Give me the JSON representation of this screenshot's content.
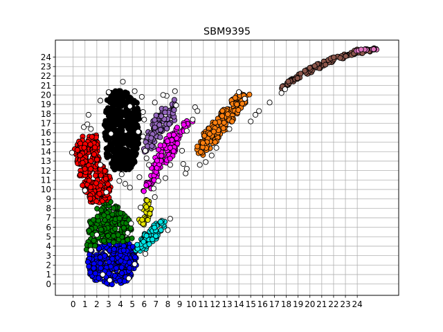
{
  "chart_data": {
    "type": "scatter",
    "title": "SBM9395",
    "xlabel": "",
    "ylabel": "",
    "xlim": [
      -1.5,
      27.5
    ],
    "ylim": [
      -1.2,
      25.8
    ],
    "xticks": [
      0,
      1,
      2,
      3,
      4,
      5,
      6,
      7,
      8,
      9,
      10,
      11,
      12,
      13,
      14,
      15,
      16,
      17,
      18,
      19,
      20,
      21,
      22,
      23,
      24
    ],
    "yticks": [
      0,
      1,
      2,
      3,
      4,
      5,
      6,
      7,
      8,
      9,
      10,
      11,
      12,
      13,
      14,
      15,
      16,
      17,
      18,
      19,
      20,
      21,
      22,
      23,
      24
    ],
    "grid": true,
    "marker_edge_color": "#000000",
    "clusters": [
      {
        "color": "#0000ff",
        "outline": [
          [
            1.1,
            1.6
          ],
          [
            1.8,
            0.3
          ],
          [
            3.2,
            -0.1
          ],
          [
            4.5,
            0.2
          ],
          [
            5.3,
            1.4
          ],
          [
            5.4,
            3.4
          ],
          [
            4.8,
            4.3
          ],
          [
            2.6,
            4.3
          ],
          [
            1.4,
            3.5
          ]
        ],
        "count": 340
      },
      {
        "color": "#008000",
        "outline": [
          [
            1.1,
            3.4
          ],
          [
            1.4,
            7.0
          ],
          [
            2.1,
            8.3
          ],
          [
            3.0,
            9.1
          ],
          [
            4.2,
            7.8
          ],
          [
            5.0,
            6.2
          ],
          [
            5.0,
            4.6
          ],
          [
            3.6,
            4.4
          ],
          [
            1.9,
            4.0
          ]
        ],
        "count": 180
      },
      {
        "color": "#ff0000",
        "outline": [
          [
            0.1,
            14.2
          ],
          [
            0.7,
            15.7
          ],
          [
            2.0,
            15.9
          ],
          [
            2.2,
            13.0
          ],
          [
            3.1,
            11.5
          ],
          [
            3.3,
            9.2
          ],
          [
            2.3,
            8.4
          ],
          [
            1.2,
            8.8
          ],
          [
            0.6,
            11.2
          ]
        ],
        "count": 260
      },
      {
        "color": "#000000",
        "outline": [
          [
            2.6,
            17.1
          ],
          [
            2.9,
            20.2
          ],
          [
            3.6,
            20.5
          ],
          [
            4.6,
            20.3
          ],
          [
            5.4,
            19.5
          ],
          [
            5.7,
            16.3
          ],
          [
            5.3,
            13.1
          ],
          [
            4.8,
            12.1
          ],
          [
            3.4,
            12.1
          ],
          [
            2.8,
            13.6
          ]
        ],
        "count": 460
      },
      {
        "color": "#00e5e5",
        "outline": [
          [
            5.1,
            3.3
          ],
          [
            5.6,
            5.0
          ],
          [
            6.4,
            5.8
          ],
          [
            7.3,
            6.8
          ],
          [
            8.0,
            6.5
          ],
          [
            7.3,
            5.2
          ],
          [
            6.2,
            3.6
          ]
        ],
        "count": 70
      },
      {
        "color": "#e5e500",
        "outline": [
          [
            5.4,
            6.3
          ],
          [
            5.6,
            7.6
          ],
          [
            6.1,
            8.9
          ],
          [
            6.6,
            9.3
          ],
          [
            6.8,
            8.1
          ],
          [
            6.4,
            6.8
          ],
          [
            5.9,
            6.0
          ]
        ],
        "count": 28
      },
      {
        "color": "#ff00ff",
        "outline": [
          [
            5.9,
            9.7
          ],
          [
            6.5,
            12.2
          ],
          [
            7.3,
            14.6
          ],
          [
            8.4,
            16.2
          ],
          [
            9.6,
            17.4
          ],
          [
            10.2,
            17.2
          ],
          [
            9.0,
            15.7
          ],
          [
            8.6,
            13.8
          ],
          [
            7.3,
            12.0
          ],
          [
            6.7,
            10.1
          ]
        ],
        "count": 120
      },
      {
        "color": "#9467bd",
        "outline": [
          [
            5.9,
            13.9
          ],
          [
            6.2,
            16.4
          ],
          [
            7.2,
            18.2
          ],
          [
            8.2,
            19.5
          ],
          [
            8.8,
            19.6
          ],
          [
            8.6,
            17.3
          ],
          [
            7.4,
            15.6
          ],
          [
            6.5,
            13.7
          ]
        ],
        "count": 90
      },
      {
        "color": "#ff7f0e",
        "outline": [
          [
            10.1,
            13.7
          ],
          [
            10.6,
            15.3
          ],
          [
            11.8,
            17.1
          ],
          [
            12.9,
            18.9
          ],
          [
            14.1,
            20.3
          ],
          [
            15.1,
            20.3
          ],
          [
            14.2,
            18.4
          ],
          [
            13.4,
            17.0
          ],
          [
            12.2,
            15.2
          ],
          [
            11.0,
            13.6
          ]
        ],
        "count": 170
      },
      {
        "color": "#8c564b",
        "outline": [
          [
            17.3,
            20.5
          ],
          [
            18.5,
            21.8
          ],
          [
            20.3,
            23.1
          ],
          [
            22.2,
            24.1
          ],
          [
            23.8,
            24.8
          ],
          [
            25.5,
            25.0
          ],
          [
            25.3,
            24.6
          ],
          [
            23.6,
            24.2
          ],
          [
            21.6,
            23.3
          ],
          [
            19.6,
            22.0
          ],
          [
            18.0,
            20.9
          ]
        ],
        "count": 110
      },
      {
        "color": "#e377c2",
        "outline": [
          [
            23.6,
            24.6
          ],
          [
            24.6,
            24.9
          ],
          [
            25.8,
            25.0
          ],
          [
            25.8,
            24.8
          ],
          [
            24.5,
            24.7
          ]
        ],
        "count": 12
      }
    ],
    "noise_points": [
      [
        -0.1,
        13.9
      ],
      [
        0.9,
        16.6
      ],
      [
        1.3,
        17.9
      ],
      [
        1.2,
        16.9
      ],
      [
        1.5,
        16.4
      ],
      [
        3.0,
        20.3
      ],
      [
        4.2,
        21.4
      ],
      [
        5.2,
        20.4
      ],
      [
        5.9,
        18.2
      ],
      [
        6.0,
        17.4
      ],
      [
        5.5,
        16.1
      ],
      [
        6.1,
        14.1
      ],
      [
        6.4,
        12.6
      ],
      [
        5.6,
        11.3
      ],
      [
        4.8,
        10.2
      ],
      [
        4.4,
        10.6
      ],
      [
        4.1,
        11.6
      ],
      [
        3.9,
        10.9
      ],
      [
        6.9,
        19.2
      ],
      [
        8.6,
        20.4
      ],
      [
        8.7,
        18.9
      ],
      [
        10.3,
        18.7
      ],
      [
        10.5,
        18.3
      ],
      [
        10.1,
        17.4
      ],
      [
        9.6,
        16.2
      ],
      [
        9.2,
        14.1
      ],
      [
        9.3,
        12.7
      ],
      [
        9.6,
        12.2
      ],
      [
        9.5,
        11.7
      ],
      [
        10.7,
        12.6
      ],
      [
        11.2,
        12.9
      ],
      [
        11.7,
        13.6
      ],
      [
        12.1,
        14.4
      ],
      [
        13.2,
        16.4
      ],
      [
        14.0,
        20.3
      ],
      [
        14.5,
        19.6
      ],
      [
        15.0,
        17.2
      ],
      [
        15.4,
        17.9
      ],
      [
        15.7,
        18.3
      ],
      [
        16.6,
        19.2
      ],
      [
        17.6,
        20.2
      ],
      [
        17.9,
        20.6
      ],
      [
        4.6,
        5.4
      ],
      [
        4.9,
        6.4
      ],
      [
        6.1,
        3.2
      ],
      [
        8.2,
        6.9
      ],
      [
        8.0,
        5.7
      ],
      [
        6.8,
        10.1
      ],
      [
        6.9,
        9.2
      ],
      [
        5.7,
        8.1
      ],
      [
        2.0,
        5.2
      ],
      [
        1.5,
        3.6
      ],
      [
        2.5,
        1.0
      ],
      [
        3.1,
        0.4
      ],
      [
        4.7,
        0.6
      ],
      [
        5.2,
        2.1
      ],
      [
        2.8,
        9.7
      ],
      [
        1.0,
        9.9
      ],
      [
        2.3,
        12.6
      ],
      [
        3.2,
        15.9
      ],
      [
        2.3,
        19.4
      ],
      [
        4.8,
        18.8
      ],
      [
        5.8,
        19.8
      ],
      [
        7.9,
        19.9
      ],
      [
        7.6,
        20.0
      ],
      [
        8.2,
        12.6
      ],
      [
        7.8,
        11.2
      ],
      [
        7.2,
        10.9
      ],
      [
        6.2,
        13.3
      ],
      [
        5.9,
        15.6
      ]
    ]
  }
}
